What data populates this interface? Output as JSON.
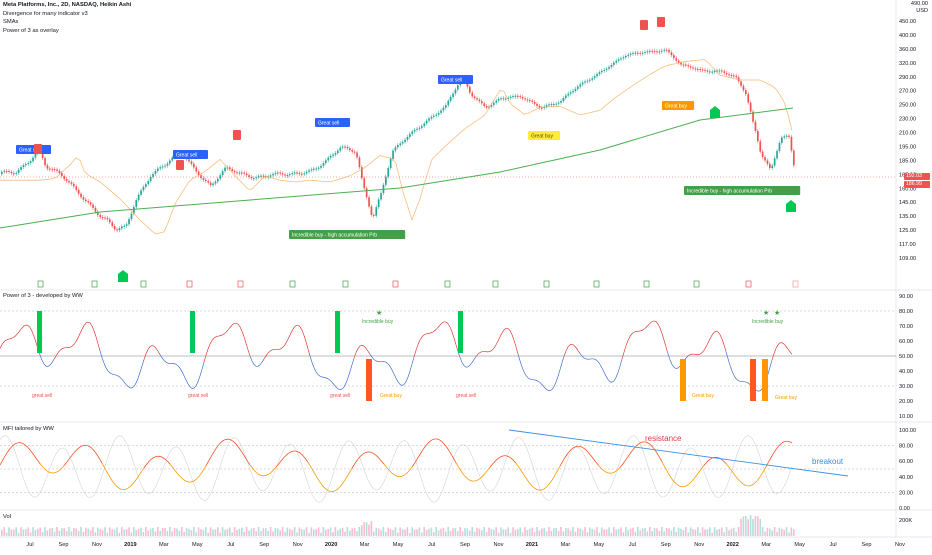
{
  "legend": {
    "symbol_line": "Meta Platforms, Inc., 2D, NASDAQ, Heikin Ashi",
    "indicator1": "Divergence for many indicator v3",
    "indicator2": "SMAs",
    "indicator3": "Power of 3 as overlay"
  },
  "axis_currency": "USD",
  "price_axis": {
    "ticks": [
      "450.00",
      "400.00",
      "360.00",
      "320.00",
      "290.00",
      "270.00",
      "250.00",
      "230.00",
      "210.00",
      "195.00",
      "185.00",
      "167.00",
      "160.00",
      "145.00",
      "135.00",
      "125.00",
      "117.00",
      "109.00"
    ],
    "top_tick": "490.00",
    "last_price_1": "192.03",
    "last_price_2": "186.99",
    "last_color_1": "#ef5350",
    "last_color_2": "#ef5350"
  },
  "panes": {
    "power3": {
      "title": "Power of 3 - developed by WW",
      "ticks": [
        "90.00",
        "80.00",
        "70.00",
        "60.00",
        "50.00",
        "40.00",
        "30.00",
        "20.00",
        "10.00"
      ]
    },
    "mfi": {
      "title": "MFI tailored by WW",
      "ticks": [
        "100.00",
        "80.00",
        "60.00",
        "40.00",
        "20.00",
        "0.00"
      ]
    },
    "vol": {
      "title": "Vol",
      "ticks": [
        "200K",
        "0"
      ]
    }
  },
  "time_axis": [
    "Jul",
    "Sep",
    "Nov",
    "2019",
    "Mar",
    "May",
    "Jul",
    "Sep",
    "Nov",
    "2020",
    "Mar",
    "May",
    "Jul",
    "Sep",
    "Nov",
    "2021",
    "Mar",
    "May",
    "Jul",
    "Sep",
    "Nov",
    "2022",
    "Mar",
    "May",
    "Jul",
    "Sep",
    "Nov"
  ],
  "price_annotations": [
    {
      "text": "Great sell",
      "kind": "sell"
    },
    {
      "text": "Great sell",
      "kind": "sell"
    },
    {
      "text": "Great sell",
      "kind": "sell"
    },
    {
      "text": "Great sell",
      "kind": "sell"
    },
    {
      "text": "Great buy",
      "kind": "buy-yellow"
    },
    {
      "text": "Great buy",
      "kind": "buy-orange"
    },
    {
      "text": "Incredible buy - high accumulation Prb",
      "kind": "incredible"
    },
    {
      "text": "Incredible buy - high accumulation Prb",
      "kind": "incredible"
    }
  ],
  "power3_labels": [
    {
      "text": "great sell"
    },
    {
      "text": "great sell"
    },
    {
      "text": "great sell"
    },
    {
      "text": "great sell"
    },
    {
      "text": "Great buy"
    },
    {
      "text": "Great buy"
    },
    {
      "text": "Great buy"
    },
    {
      "text": "Incredible buy"
    },
    {
      "text": "Incredible buy"
    }
  ],
  "mfi_annotations": {
    "resistance": "resistance",
    "breakout": "breakout"
  },
  "colors": {
    "up": "#26a69a",
    "down": "#ef5350",
    "sma_short": "#f7a348",
    "sma_long": "#4caf50",
    "power_line_red": "#e53935",
    "power_line_blue": "#3f6fd1",
    "mfi_orange": "#ff9800",
    "mfi_red": "#f4511e",
    "trend_blue": "#3d8fe0",
    "resistance_red": "#f23645"
  }
}
